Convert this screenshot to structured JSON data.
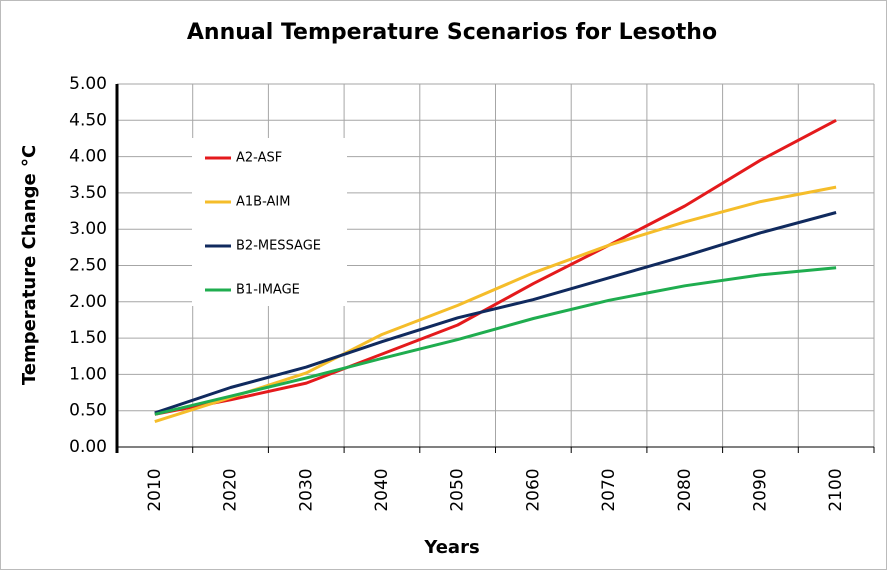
{
  "chart_data": {
    "type": "line",
    "title": "Annual Temperature Scenarios for Lesotho",
    "x_label": "Years",
    "y_label": "Temperature Change °C",
    "categories": [
      "2010",
      "2020",
      "2030",
      "2040",
      "2050",
      "2060",
      "2070",
      "2080",
      "2090",
      "2100"
    ],
    "series": [
      {
        "name": "A2-ASF",
        "color": "#e41a1c",
        "values": [
          0.45,
          0.65,
          0.88,
          1.28,
          1.68,
          2.25,
          2.78,
          3.32,
          3.95,
          4.5
        ]
      },
      {
        "name": "A1B-AIM",
        "color": "#f5bd2a",
        "values": [
          0.35,
          0.68,
          1.02,
          1.55,
          1.95,
          2.4,
          2.78,
          3.1,
          3.38,
          3.58
        ]
      },
      {
        "name": "B2-MESSAGE",
        "color": "#102a5e",
        "values": [
          0.47,
          0.82,
          1.1,
          1.45,
          1.78,
          2.03,
          2.33,
          2.63,
          2.95,
          3.23
        ]
      },
      {
        "name": "B1-IMAGE",
        "color": "#1fad4f",
        "values": [
          0.45,
          0.7,
          0.95,
          1.22,
          1.48,
          1.77,
          2.02,
          2.22,
          2.37,
          2.47
        ]
      }
    ],
    "ylim": [
      0,
      5
    ],
    "yticks": [
      {
        "value": 0,
        "label": "0.00"
      },
      {
        "value": 0.5,
        "label": "0.50"
      },
      {
        "value": 1,
        "label": "1.00"
      },
      {
        "value": 1.5,
        "label": "1.50"
      },
      {
        "value": 2,
        "label": "2.00"
      },
      {
        "value": 2.5,
        "label": "2.50"
      },
      {
        "value": 3,
        "label": "3.00"
      },
      {
        "value": 3.5,
        "label": "3.50"
      },
      {
        "value": 4,
        "label": "4.00"
      },
      {
        "value": 4.5,
        "label": "4.50"
      },
      {
        "value": 5,
        "label": "5.00"
      }
    ],
    "grid": true,
    "legend": "upper left"
  }
}
